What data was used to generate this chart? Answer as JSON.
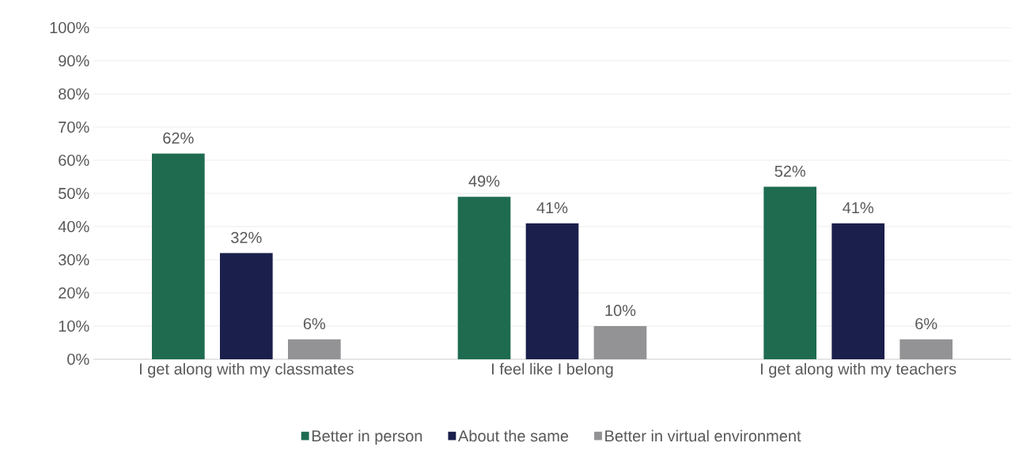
{
  "chart_data": {
    "type": "bar",
    "categories": [
      "I get along with my classmates",
      "I feel like I belong",
      "I get along with my teachers"
    ],
    "series": [
      {
        "name": "Better in person",
        "color": "#1e6b50",
        "values": [
          62,
          49,
          52
        ],
        "value_labels": [
          "62%",
          "49%",
          "52%"
        ]
      },
      {
        "name": "About the same",
        "color": "#1a1f4b",
        "values": [
          32,
          41,
          41
        ],
        "value_labels": [
          "32%",
          "41%",
          "41%"
        ]
      },
      {
        "name": "Better in virtual environment",
        "color": "#939396",
        "values": [
          6,
          10,
          6
        ],
        "value_labels": [
          "6%",
          "10%",
          "6%"
        ]
      }
    ],
    "ylim": [
      0,
      100
    ],
    "yticks": [
      {
        "value": 0,
        "label": "0%"
      },
      {
        "value": 10,
        "label": "10%"
      },
      {
        "value": 20,
        "label": "20%"
      },
      {
        "value": 30,
        "label": "30%"
      },
      {
        "value": 40,
        "label": "40%"
      },
      {
        "value": 50,
        "label": "50%"
      },
      {
        "value": 60,
        "label": "60%"
      },
      {
        "value": 70,
        "label": "70%"
      },
      {
        "value": 80,
        "label": "80%"
      },
      {
        "value": 90,
        "label": "90%"
      },
      {
        "value": 100,
        "label": "100%"
      }
    ],
    "grid": "y",
    "legend": "bottom"
  }
}
